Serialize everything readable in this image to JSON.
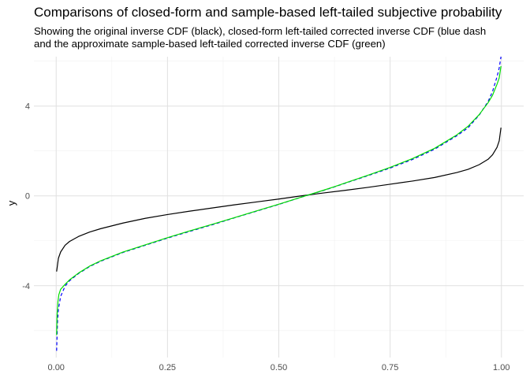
{
  "chart_data": {
    "type": "line",
    "title": "Comparisons of closed-form and sample-based left-tailed subjective probability",
    "subtitle_lines": [
      "Showing the original inverse CDF (black), closed-form left-tailed corrected inverse CDF (blue dash",
      "and the approximate sample-based left-tailed corrected inverse CDF (green)"
    ],
    "xlabel": "",
    "ylabel": "y",
    "xlim": [
      -0.05,
      1.05
    ],
    "ylim": [
      -7.2,
      6.2
    ],
    "x_ticks": [
      0,
      0.25,
      0.5,
      0.75,
      1
    ],
    "x_tick_labels": [
      "0.00",
      "0.25",
      "0.50",
      "0.75",
      "1.00"
    ],
    "y_ticks": [
      -4,
      0,
      4
    ],
    "y_tick_labels": [
      "-4",
      "0",
      "4"
    ],
    "grid": true,
    "series": [
      {
        "color": "#000000",
        "dash": "solid",
        "x": [
          0.001,
          0.005,
          0.01,
          0.02,
          0.03,
          0.05,
          0.075,
          0.1,
          0.15,
          0.2,
          0.25,
          0.3,
          0.35,
          0.4,
          0.45,
          0.5,
          0.55,
          0.6,
          0.65,
          0.7,
          0.75,
          0.8,
          0.85,
          0.9,
          0.925,
          0.95,
          0.97,
          0.98,
          0.99,
          0.995,
          0.999
        ],
        "y": [
          -3.37,
          -2.78,
          -2.5,
          -2.2,
          -2.03,
          -1.81,
          -1.61,
          -1.46,
          -1.21,
          -1.0,
          -0.83,
          -0.68,
          -0.54,
          -0.4,
          -0.27,
          -0.14,
          0.0,
          0.13,
          0.25,
          0.38,
          0.52,
          0.66,
          0.82,
          1.04,
          1.18,
          1.39,
          1.63,
          1.83,
          2.16,
          2.45,
          3.04
        ]
      },
      {
        "color": "#0000ff",
        "dash": "dashed",
        "x": [
          0.001,
          0.003,
          0.005,
          0.01,
          0.02,
          0.03,
          0.05,
          0.075,
          0.1,
          0.15,
          0.2,
          0.25,
          0.3,
          0.35,
          0.4,
          0.45,
          0.5,
          0.55,
          0.6,
          0.625,
          0.65,
          0.7,
          0.75,
          0.8,
          0.85,
          0.9,
          0.925,
          0.95,
          0.97,
          0.98,
          0.99,
          0.995,
          0.999
        ],
        "y": [
          -6.9,
          -5.6,
          -5.05,
          -4.48,
          -4.02,
          -3.78,
          -3.46,
          -3.15,
          -2.91,
          -2.52,
          -2.2,
          -1.88,
          -1.58,
          -1.29,
          -0.98,
          -0.68,
          -0.38,
          -0.06,
          0.24,
          0.4,
          0.57,
          0.9,
          1.24,
          1.62,
          2.08,
          2.68,
          3.03,
          3.6,
          4.2,
          4.65,
          5.3,
          5.7,
          6.2
        ]
      },
      {
        "color": "#00dd00",
        "dash": "solid",
        "x": [
          0.001,
          0.002,
          0.004,
          0.006,
          0.01,
          0.02,
          0.03,
          0.05,
          0.075,
          0.1,
          0.15,
          0.2,
          0.25,
          0.3,
          0.35,
          0.4,
          0.45,
          0.5,
          0.55,
          0.6,
          0.625,
          0.65,
          0.7,
          0.75,
          0.8,
          0.85,
          0.9,
          0.925,
          0.95,
          0.97,
          0.98,
          0.99,
          0.995,
          0.999
        ],
        "y": [
          -6.2,
          -5.3,
          -4.7,
          -4.4,
          -4.16,
          -3.94,
          -3.74,
          -3.44,
          -3.13,
          -2.89,
          -2.5,
          -2.18,
          -1.86,
          -1.56,
          -1.27,
          -0.97,
          -0.67,
          -0.37,
          -0.06,
          0.25,
          0.41,
          0.58,
          0.92,
          1.27,
          1.66,
          2.12,
          2.72,
          3.1,
          3.62,
          4.15,
          4.48,
          4.97,
          5.25,
          5.78
        ]
      }
    ]
  }
}
